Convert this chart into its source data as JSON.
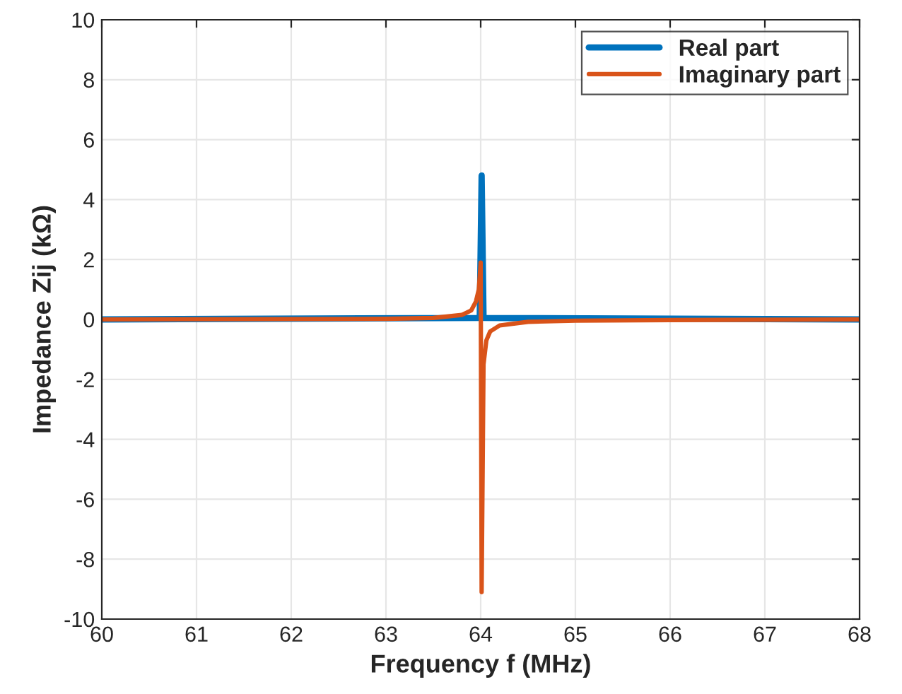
{
  "chart_data": {
    "type": "line",
    "xlabel": "Frequency f (MHz)",
    "ylabel": "Impedance Zij (kΩ)",
    "xlim": [
      60,
      68
    ],
    "xticks": [
      60,
      61,
      62,
      63,
      64,
      65,
      66,
      67,
      68
    ],
    "ylim": [
      -10,
      10
    ],
    "yticks": [
      -10,
      -8,
      -6,
      -4,
      -2,
      0,
      2,
      4,
      6,
      8,
      10
    ],
    "grid": true,
    "legend": "top right",
    "marker": "none",
    "line_style": "solid",
    "series": [
      {
        "name": "Real part",
        "color": "#0072bd",
        "x": [
          60,
          63.99,
          64.01,
          64.03,
          68
        ],
        "values": [
          0,
          0.05,
          4.8,
          0.05,
          0
        ]
      },
      {
        "name": "Imaginary part",
        "color": "#d95319",
        "x": [
          60,
          63,
          63.5,
          63.8,
          63.9,
          63.95,
          63.98,
          64.0,
          64.01,
          64.03,
          64.06,
          64.1,
          64.2,
          64.5,
          65,
          66,
          68
        ],
        "values": [
          0,
          0.02,
          0.05,
          0.15,
          0.3,
          0.6,
          1.0,
          1.9,
          -9.1,
          -1.5,
          -0.7,
          -0.4,
          -0.2,
          -0.08,
          -0.04,
          -0.02,
          0
        ]
      }
    ]
  }
}
